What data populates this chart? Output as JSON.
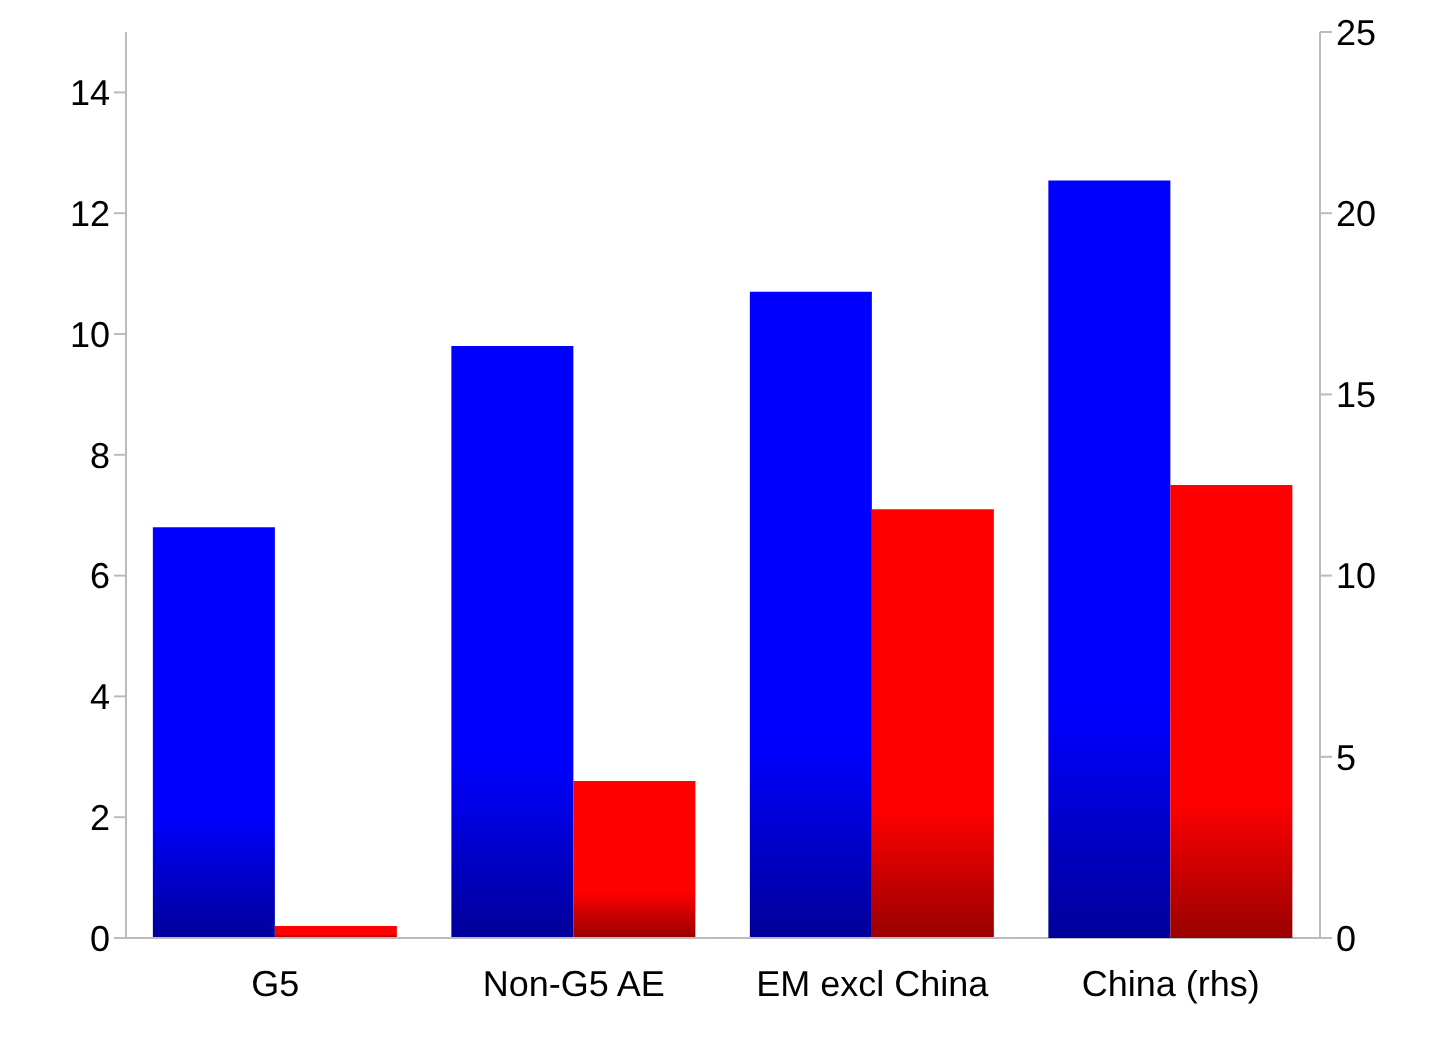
{
  "chart_data": {
    "type": "bar",
    "categories": [
      "G5",
      "Non-G5 AE",
      "EM excl China",
      "China (rhs)"
    ],
    "series": [
      {
        "color": "#0000ff",
        "values": [
          6.8,
          9.8,
          10.7,
          null
        ]
      },
      {
        "color": "#ff0000",
        "values": [
          0.2,
          2.6,
          7.1,
          null
        ]
      },
      {
        "color": "#0000ff",
        "axis": "y2",
        "values": [
          null,
          null,
          null,
          20.9
        ]
      },
      {
        "color": "#ff0000",
        "axis": "y2",
        "values": [
          null,
          null,
          null,
          12.5
        ]
      }
    ],
    "ylim": [
      0,
      15
    ],
    "yticks": [
      0,
      2,
      4,
      6,
      8,
      10,
      12,
      14
    ],
    "y2lim": [
      0,
      25
    ],
    "y2ticks": [
      0,
      5,
      10,
      15,
      20,
      25
    ],
    "grid": false,
    "legend": false
  }
}
